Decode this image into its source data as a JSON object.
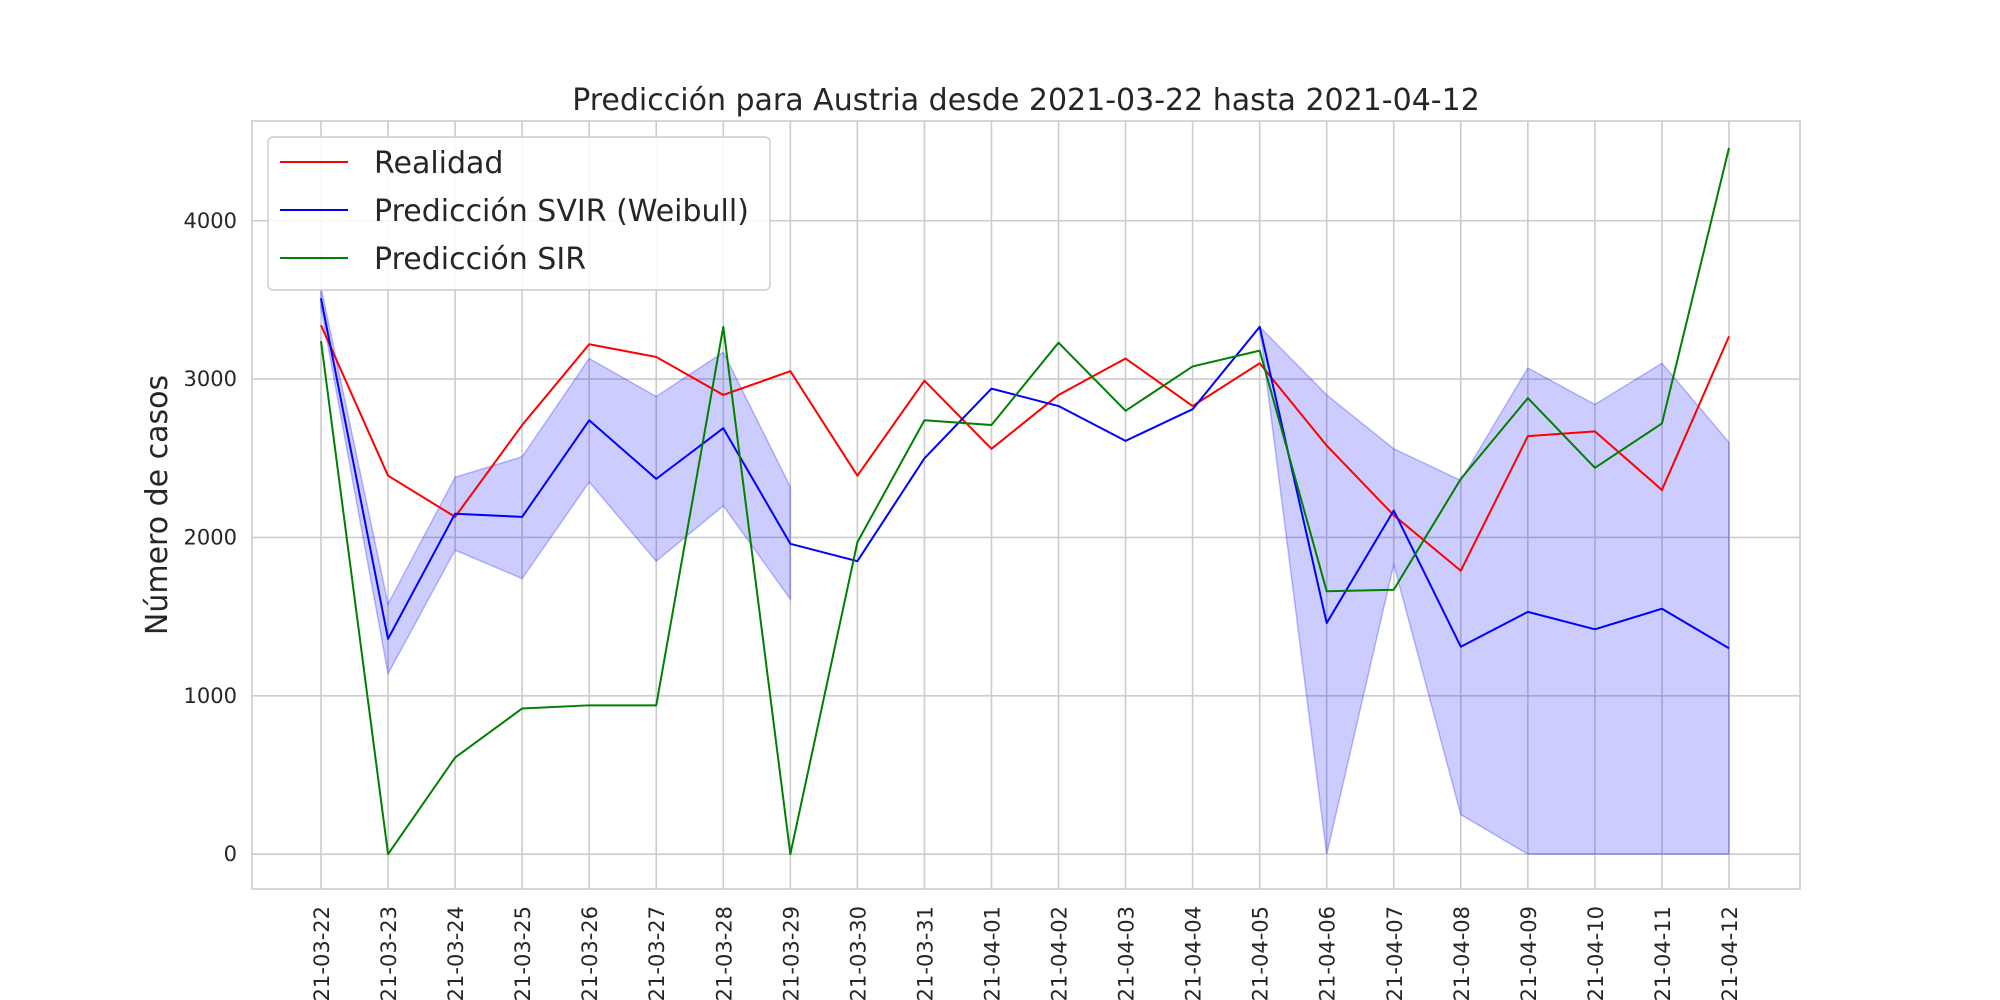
{
  "chart_data": {
    "type": "line",
    "title": "Predicción para Austria desde 2021-03-22 hasta 2021-04-12",
    "xlabel": "",
    "ylabel": "Número de casos",
    "categories": [
      "2021-03-22",
      "2021-03-23",
      "2021-03-24",
      "2021-03-25",
      "2021-03-26",
      "2021-03-27",
      "2021-03-28",
      "2021-03-29",
      "2021-03-30",
      "2021-03-31",
      "2021-04-01",
      "2021-04-02",
      "2021-04-03",
      "2021-04-04",
      "2021-04-05",
      "2021-04-06",
      "2021-04-07",
      "2021-04-08",
      "2021-04-09",
      "2021-04-10",
      "2021-04-11",
      "2021-04-12"
    ],
    "ylim": [
      -220,
      4630
    ],
    "yticks": [
      0,
      1000,
      2000,
      3000,
      4000
    ],
    "grid": true,
    "legend_position": "top-left",
    "series": [
      {
        "name": "Realidad",
        "color": "#ff0000",
        "values": [
          3340,
          2390,
          2130,
          2710,
          3220,
          3140,
          2900,
          3050,
          2390,
          2990,
          2560,
          2900,
          3130,
          2830,
          3100,
          2580,
          2140,
          1790,
          2640,
          2670,
          2300,
          3270
        ]
      },
      {
        "name": "Predicción SVIR (Weibull)",
        "color": "#0000ff",
        "values": [
          3510,
          1360,
          2150,
          2130,
          2740,
          2370,
          2690,
          1960,
          1850,
          2500,
          2940,
          2830,
          2610,
          2810,
          3330,
          1460,
          2170,
          1310,
          1530,
          1420,
          1550,
          1300
        ]
      },
      {
        "name": "Predicción SIR",
        "color": "#008000",
        "values": [
          3240,
          0,
          610,
          920,
          940,
          940,
          3330,
          0,
          1970,
          2740,
          2710,
          3230,
          2800,
          3080,
          3180,
          1660,
          1670,
          2370,
          2880,
          2440,
          2720,
          4460
        ]
      }
    ],
    "band": {
      "series": "Predicción SVIR (Weibull)",
      "color": "#0000ff",
      "opacity": 0.2,
      "segments": [
        {
          "start": 0,
          "lower": [
            3450,
            1140,
            1920,
            1740,
            2350,
            1850,
            2200,
            1610
          ],
          "upper": [
            3580,
            1580,
            2380,
            2510,
            3130,
            2890,
            3170,
            2320
          ]
        },
        {
          "start": 14,
          "lower": [
            3330,
            0,
            1830,
            250,
            0,
            0,
            0,
            0
          ],
          "upper": [
            3330,
            2900,
            2560,
            2360,
            3070,
            2840,
            3100,
            2600
          ]
        }
      ]
    }
  }
}
